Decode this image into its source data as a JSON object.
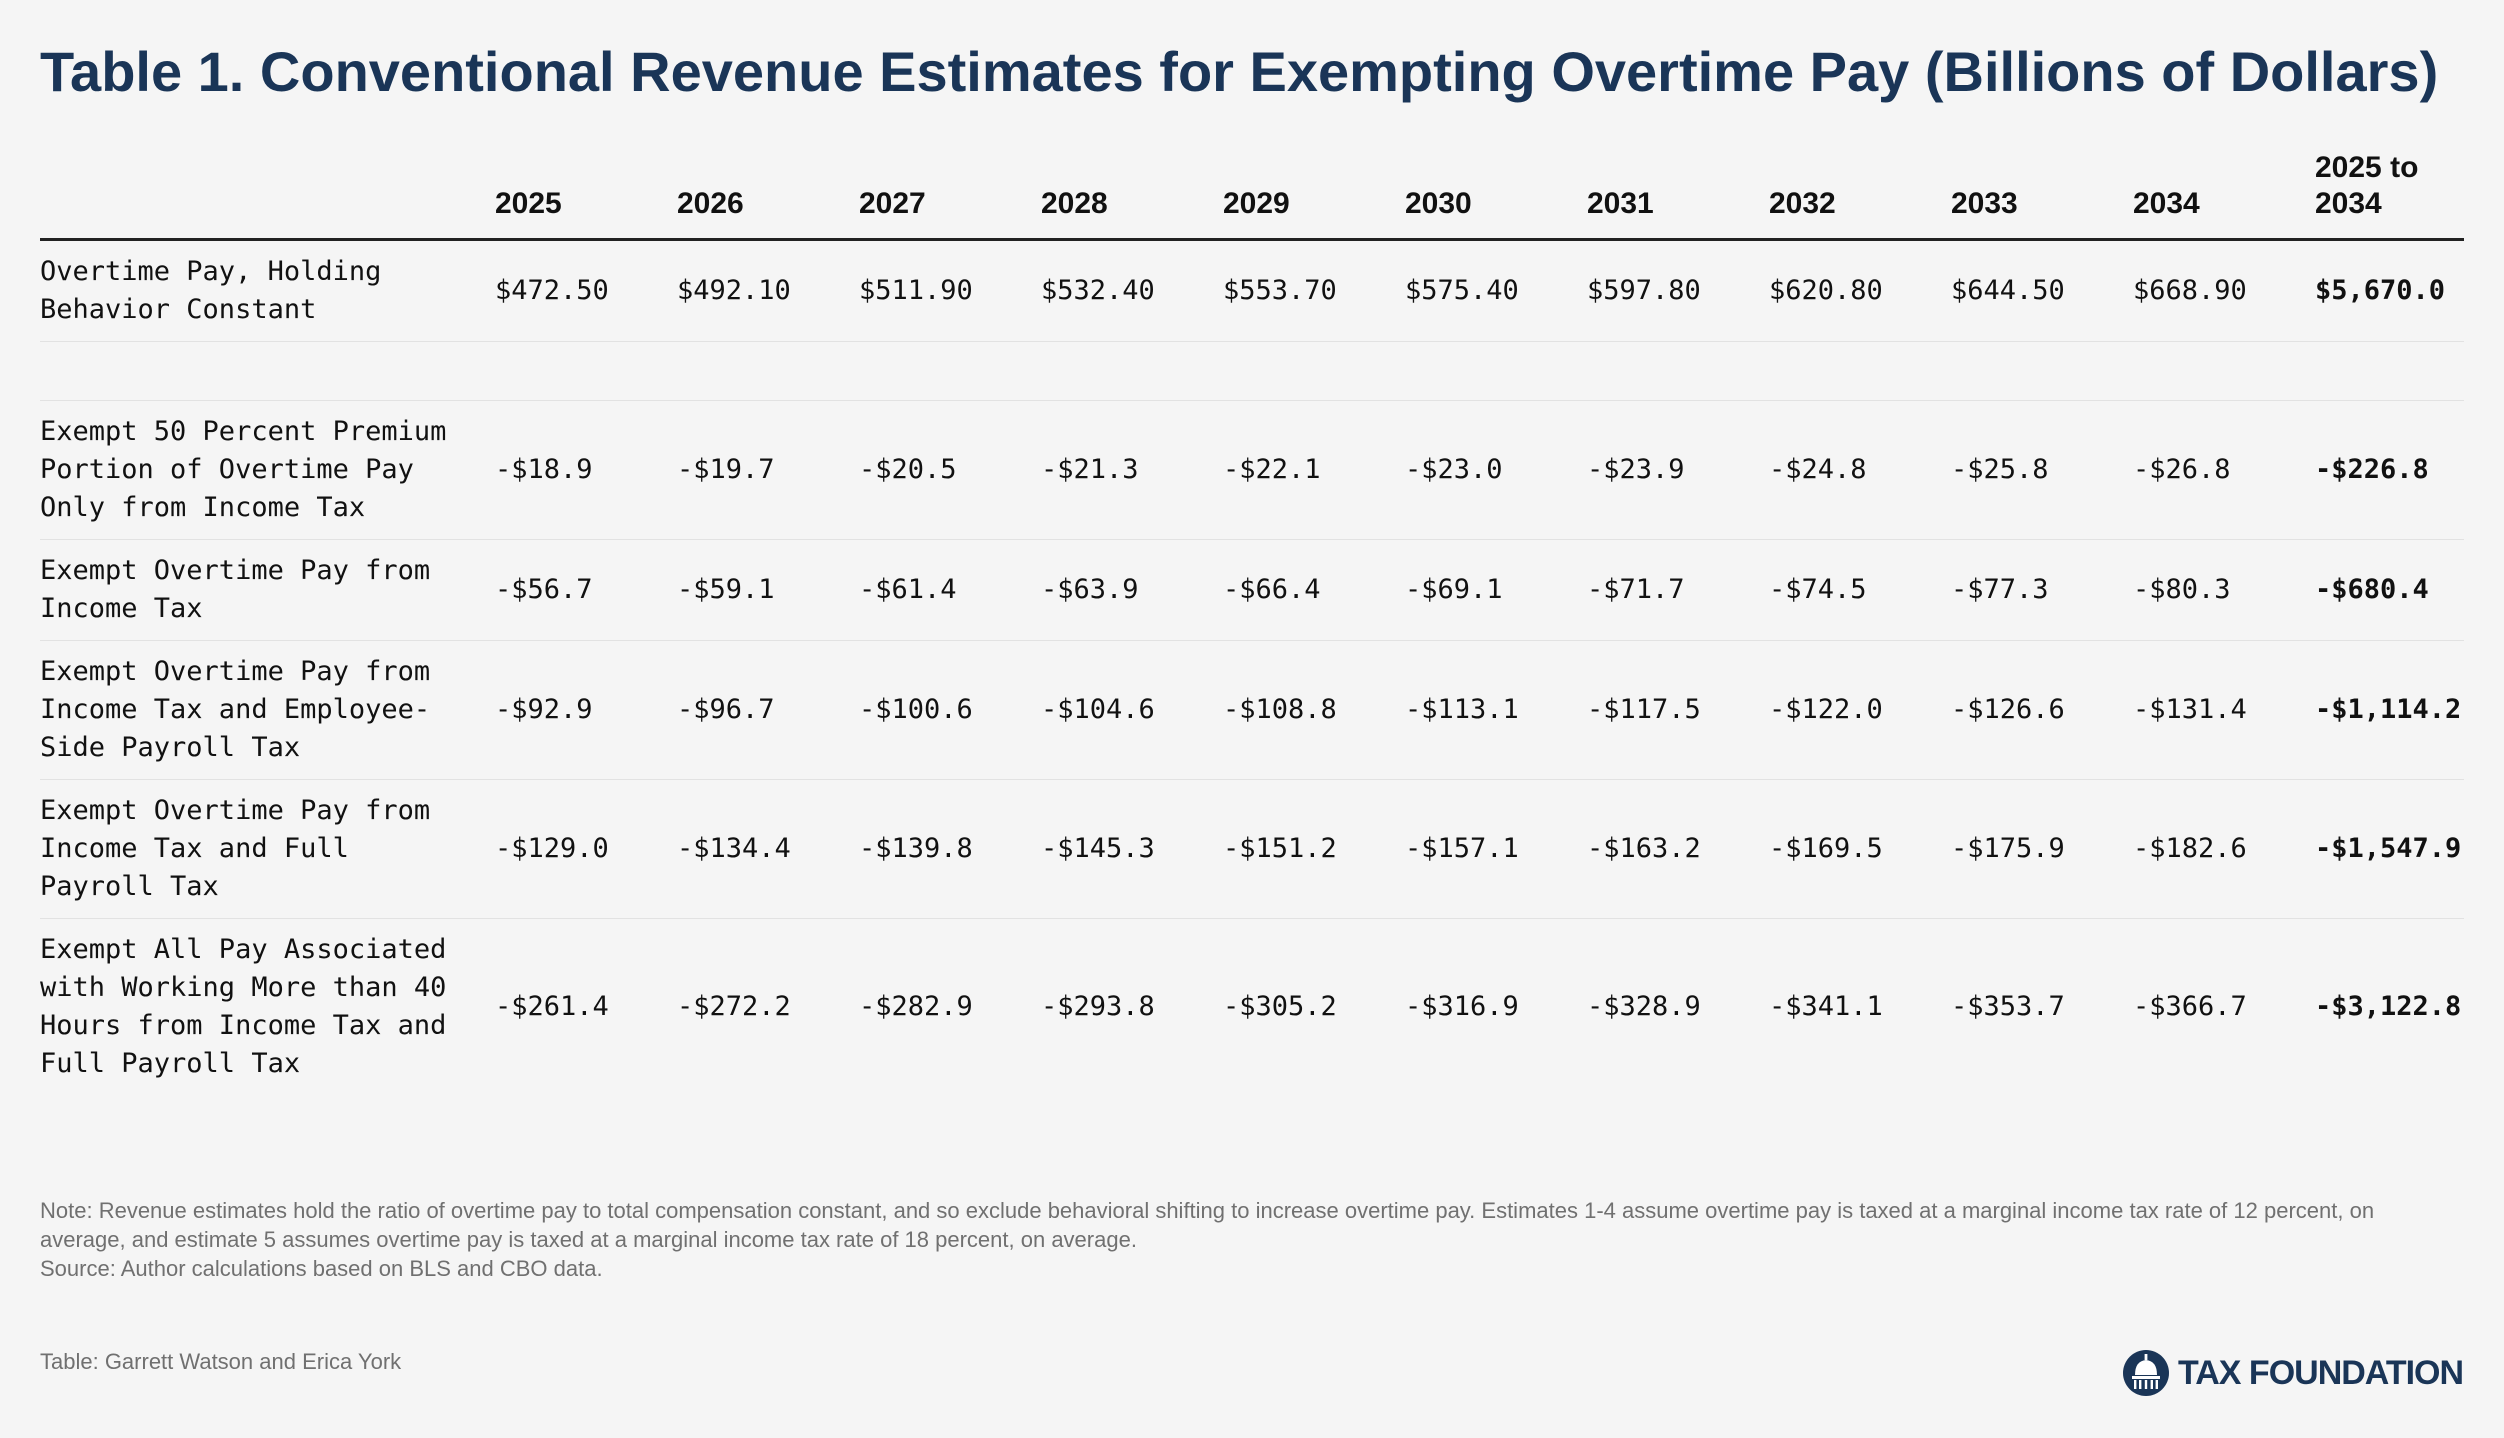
{
  "title": "Table 1. Conventional Revenue Estimates for Exempting Overtime Pay (Billions of Dollars)",
  "table": {
    "columns": [
      "",
      "2025",
      "2026",
      "2027",
      "2028",
      "2029",
      "2030",
      "2031",
      "2032",
      "2033",
      "2034",
      "2025 to 2034"
    ],
    "rows": [
      {
        "label": "Overtime Pay, Holding Behavior Constant",
        "values": [
          "$472.50",
          "$492.10",
          "$511.90",
          "$532.40",
          "$553.70",
          "$575.40",
          "$597.80",
          "$620.80",
          "$644.50",
          "$668.90"
        ],
        "total": "$5,670.0"
      },
      {
        "label": "Exempt 50 Percent Premium Portion of Overtime Pay Only from Income Tax",
        "values": [
          "-$18.9",
          "-$19.7",
          "-$20.5",
          "-$21.3",
          "-$22.1",
          "-$23.0",
          "-$23.9",
          "-$24.8",
          "-$25.8",
          "-$26.8"
        ],
        "total": "-$226.8"
      },
      {
        "label": "Exempt Overtime Pay from Income Tax",
        "values": [
          "-$56.7",
          "-$59.1",
          "-$61.4",
          "-$63.9",
          "-$66.4",
          "-$69.1",
          "-$71.7",
          "-$74.5",
          "-$77.3",
          "-$80.3"
        ],
        "total": "-$680.4"
      },
      {
        "label": "Exempt Overtime Pay from Income Tax and Employee-Side Payroll Tax",
        "values": [
          "-$92.9",
          "-$96.7",
          "-$100.6",
          "-$104.6",
          "-$108.8",
          "-$113.1",
          "-$117.5",
          "-$122.0",
          "-$126.6",
          "-$131.4"
        ],
        "total": "-$1,114.2"
      },
      {
        "label": "Exempt Overtime Pay from Income Tax and Full Payroll Tax",
        "values": [
          "-$129.0",
          "-$134.4",
          "-$139.8",
          "-$145.3",
          "-$151.2",
          "-$157.1",
          "-$163.2",
          "-$169.5",
          "-$175.9",
          "-$182.6"
        ],
        "total": "-$1,547.9"
      },
      {
        "label": "Exempt All Pay Associated with Working More than 40 Hours from Income Tax and Full Payroll Tax",
        "values": [
          "-$261.4",
          "-$272.2",
          "-$282.9",
          "-$293.8",
          "-$305.2",
          "-$316.9",
          "-$328.9",
          "-$341.1",
          "-$353.7",
          "-$366.7"
        ],
        "total": "-$3,122.8"
      }
    ]
  },
  "note": "Note: Revenue estimates hold the ratio of overtime pay to total compensation constant, and so exclude behavioral shifting to increase overtime pay. Estimates 1-4 assume overtime pay is taxed at a marginal income tax rate of 12 percent, on average, and estimate 5 assumes overtime pay is taxed at a marginal income tax rate of 18 percent, on average.",
  "source": "Source: Author calculations based on BLS and CBO data.",
  "credit": "Table: Garrett Watson and Erica York",
  "logo": {
    "text": "TAX FOUNDATION",
    "icon": "capitol-dome-icon",
    "color": "#1a3557"
  },
  "colors": {
    "title": "#1a3557",
    "note": "#707070",
    "background": "#f5f5f5"
  }
}
